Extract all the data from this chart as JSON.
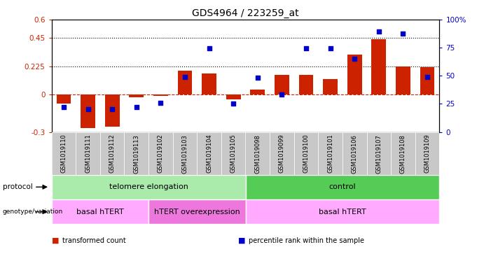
{
  "title": "GDS4964 / 223259_at",
  "samples": [
    "GSM1019110",
    "GSM1019111",
    "GSM1019112",
    "GSM1019113",
    "GSM1019102",
    "GSM1019103",
    "GSM1019104",
    "GSM1019105",
    "GSM1019098",
    "GSM1019099",
    "GSM1019100",
    "GSM1019101",
    "GSM1019106",
    "GSM1019107",
    "GSM1019108",
    "GSM1019109"
  ],
  "bar_values": [
    -0.075,
    -0.27,
    -0.255,
    -0.02,
    -0.01,
    0.19,
    0.165,
    -0.04,
    0.04,
    0.155,
    0.155,
    0.125,
    0.32,
    0.44,
    0.225,
    0.22
  ],
  "dot_values": [
    22,
    20,
    20,
    22,
    26,
    49,
    74,
    25,
    48,
    33,
    74,
    74,
    65,
    89,
    87,
    49
  ],
  "ylim_left": [
    -0.3,
    0.6
  ],
  "ylim_right": [
    0,
    100
  ],
  "yticks_left": [
    -0.3,
    0,
    0.225,
    0.45,
    0.6
  ],
  "yticks_right": [
    0,
    25,
    50,
    75,
    100
  ],
  "ytick_labels_left": [
    "-0.3",
    "0",
    "0.225",
    "0.45",
    "0.6"
  ],
  "ytick_labels_right": [
    "0",
    "25",
    "50",
    "75",
    "100%"
  ],
  "hlines": [
    0.225,
    0.45
  ],
  "bar_color": "#CC2200",
  "dot_color": "#0000CC",
  "zero_line_color": "#CC2200",
  "protocol_groups": [
    {
      "label": "telomere elongation",
      "start": 0,
      "end": 8,
      "color": "#AAEAAA"
    },
    {
      "label": "control",
      "start": 8,
      "end": 16,
      "color": "#55CC55"
    }
  ],
  "genotype_groups": [
    {
      "label": "basal hTERT",
      "start": 0,
      "end": 4,
      "color": "#FFAAFF"
    },
    {
      "label": "hTERT overexpression",
      "start": 4,
      "end": 8,
      "color": "#EE77DD"
    },
    {
      "label": "basal hTERT",
      "start": 8,
      "end": 16,
      "color": "#FFAAFF"
    }
  ],
  "legend_items": [
    {
      "label": "transformed count",
      "color": "#CC2200"
    },
    {
      "label": "percentile rank within the sample",
      "color": "#0000CC"
    }
  ],
  "label_color_left": "#CC2200",
  "label_color_right": "#0000CC",
  "tick_bg_color": "#C8C8C8"
}
